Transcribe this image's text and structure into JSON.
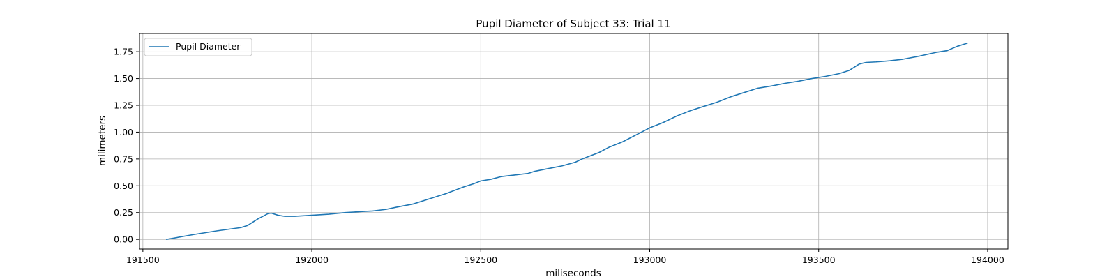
{
  "chart_data": {
    "type": "line",
    "title": "Pupil Diameter of Subject 33: Trial 11",
    "xlabel": "miliseconds",
    "ylabel": "milimeters",
    "xlim": [
      191490,
      194060
    ],
    "ylim": [
      -0.09,
      1.92
    ],
    "xticks": [
      191500,
      192000,
      192500,
      193000,
      193500,
      194000
    ],
    "xtick_labels": [
      "191500",
      "192000",
      "192500",
      "193000",
      "193500",
      "194000"
    ],
    "yticks": [
      0.0,
      0.25,
      0.5,
      0.75,
      1.0,
      1.25,
      1.5,
      1.75
    ],
    "ytick_labels": [
      "0.00",
      "0.25",
      "0.50",
      "0.75",
      "1.00",
      "1.25",
      "1.50",
      "1.75"
    ],
    "grid": true,
    "legend": {
      "position": "top-left",
      "entries": [
        "Pupil Diameter"
      ]
    },
    "series": [
      {
        "name": "Pupil Diameter",
        "color": "#1f77b4",
        "x": [
          191570,
          191650,
          191720,
          191790,
          191810,
          191840,
          191870,
          191880,
          191900,
          191920,
          191950,
          192000,
          192050,
          192100,
          192150,
          192180,
          192220,
          192250,
          192300,
          192350,
          192400,
          192450,
          192480,
          192500,
          192530,
          192560,
          192600,
          192640,
          192660,
          192700,
          192740,
          192780,
          192800,
          192850,
          192880,
          192920,
          192960,
          193000,
          193040,
          193080,
          193120,
          193160,
          193200,
          193240,
          193280,
          193320,
          193360,
          193400,
          193440,
          193480,
          193520,
          193560,
          193590,
          193620,
          193640,
          193670,
          193710,
          193750,
          193800,
          193850,
          193880,
          193910,
          193940
        ],
        "y": [
          0.0,
          0.045,
          0.08,
          0.11,
          0.13,
          0.19,
          0.24,
          0.245,
          0.225,
          0.215,
          0.215,
          0.225,
          0.235,
          0.25,
          0.26,
          0.265,
          0.28,
          0.3,
          0.33,
          0.38,
          0.43,
          0.49,
          0.52,
          0.545,
          0.56,
          0.585,
          0.6,
          0.615,
          0.635,
          0.66,
          0.685,
          0.72,
          0.75,
          0.81,
          0.86,
          0.91,
          0.975,
          1.04,
          1.09,
          1.15,
          1.2,
          1.24,
          1.28,
          1.33,
          1.37,
          1.41,
          1.43,
          1.455,
          1.475,
          1.5,
          1.52,
          1.545,
          1.575,
          1.635,
          1.65,
          1.655,
          1.665,
          1.68,
          1.71,
          1.745,
          1.76,
          1.8,
          1.83
        ]
      }
    ]
  }
}
